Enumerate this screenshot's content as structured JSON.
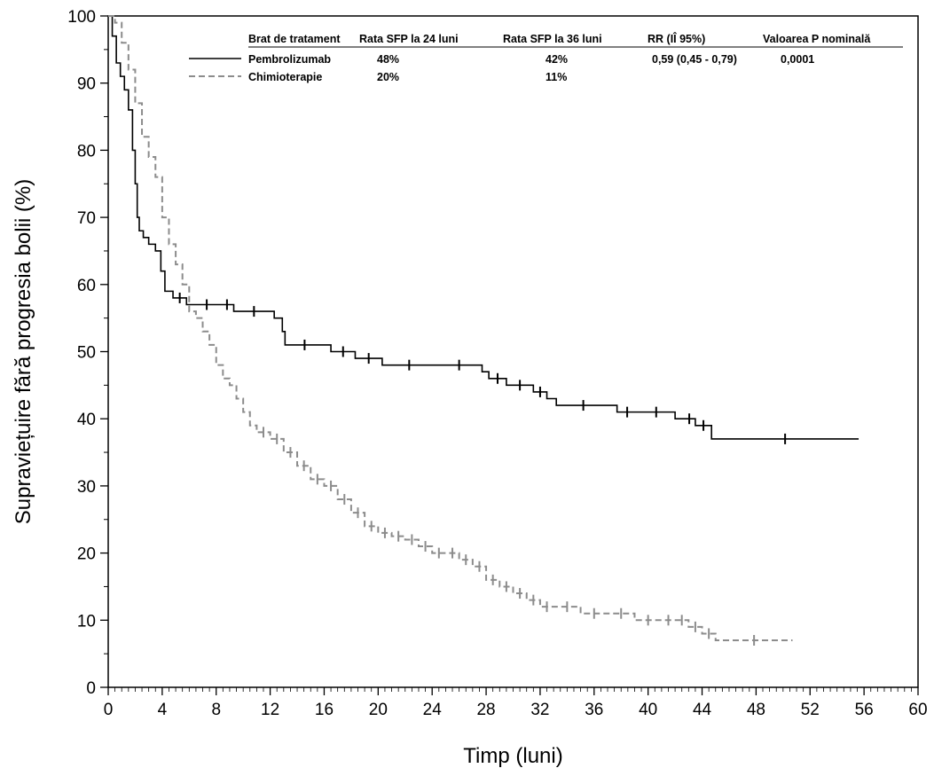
{
  "chart_data": {
    "type": "line",
    "xlabel": "Timp (luni)",
    "ylabel": "Supraviețuire fără progresia bolii (%)",
    "xlim": [
      0,
      60
    ],
    "ylim": [
      0,
      100
    ],
    "x_ticks": [
      0,
      4,
      8,
      12,
      16,
      20,
      24,
      28,
      32,
      36,
      40,
      44,
      48,
      52,
      56,
      60
    ],
    "y_ticks": [
      0,
      10,
      20,
      30,
      40,
      50,
      60,
      70,
      80,
      90,
      100
    ],
    "grid": false,
    "table": {
      "headers": [
        "Brat de tratament",
        "Rata SFP la 24  luni",
        "Rata SFP la 36  luni",
        "RR (IÎ  95%)",
        "Valoarea  P nominală"
      ],
      "rows": [
        [
          "Pembrolizumab",
          "48%",
          "42%",
          "0,59 (0,45  -  0,79)",
          "0,0001"
        ],
        [
          "Chimioterapie",
          "20%",
          "11%",
          "",
          ""
        ]
      ]
    },
    "series": [
      {
        "name": "Pembrolizumab",
        "color": "#000000",
        "dash": "solid",
        "x": [
          0,
          0.3,
          0.6,
          0.9,
          1.2,
          1.5,
          1.8,
          2.0,
          2.15,
          2.3,
          2.6,
          3.0,
          3.5,
          3.9,
          4.2,
          4.8,
          5.8,
          6.3,
          8.3,
          9.3,
          12.3,
          12.9,
          13.1,
          16.0,
          16.5,
          18.3,
          20.3,
          24.3,
          27.7,
          28.2,
          29.5,
          31.5,
          32.5,
          33.2,
          37.2,
          37.7,
          39.2,
          42.0,
          42.6,
          43.5,
          44.7,
          55.6
        ],
        "y": [
          100,
          97,
          93,
          91,
          89,
          86,
          80,
          75,
          70,
          68,
          67,
          66,
          65,
          62,
          59,
          58,
          57,
          57,
          57,
          56,
          55,
          53,
          51,
          51,
          50,
          49,
          48,
          48,
          47,
          46,
          45,
          44,
          43,
          42,
          42,
          41,
          41,
          40,
          40,
          39,
          37,
          37
        ]
      },
      {
        "name": "Chimioterapie",
        "color": "#8c8c8c",
        "dash": "dashed",
        "x": [
          0,
          0.5,
          1.0,
          1.5,
          2.0,
          2.5,
          3.0,
          3.5,
          4.0,
          4.5,
          5.0,
          5.5,
          6.0,
          6.5,
          7.0,
          7.5,
          8.0,
          8.5,
          9.0,
          9.5,
          10.0,
          10.5,
          11.0,
          12.0,
          13.0,
          14.0,
          15.0,
          16.0,
          17.0,
          18.0,
          19.0,
          20.0,
          21.0,
          22.0,
          23.0,
          24.0,
          25.0,
          26.0,
          27.0,
          28.0,
          29.0,
          30.0,
          31.0,
          32.0,
          33.0,
          35.0,
          37.0,
          39.0,
          41.0,
          42.0,
          43.0,
          44.0,
          45.0,
          50.7
        ],
        "y": [
          100,
          99,
          96,
          92,
          87,
          82,
          79,
          76,
          70,
          66,
          63,
          60,
          56,
          55,
          53,
          51,
          48,
          46,
          45,
          43,
          41,
          39,
          38,
          37,
          35,
          33,
          31,
          30,
          28,
          26,
          24,
          23,
          22.5,
          22,
          21,
          20,
          20,
          19,
          18,
          16,
          15,
          14,
          13,
          12,
          12,
          11,
          11,
          10,
          10,
          10,
          9,
          8,
          7,
          7
        ]
      }
    ]
  }
}
